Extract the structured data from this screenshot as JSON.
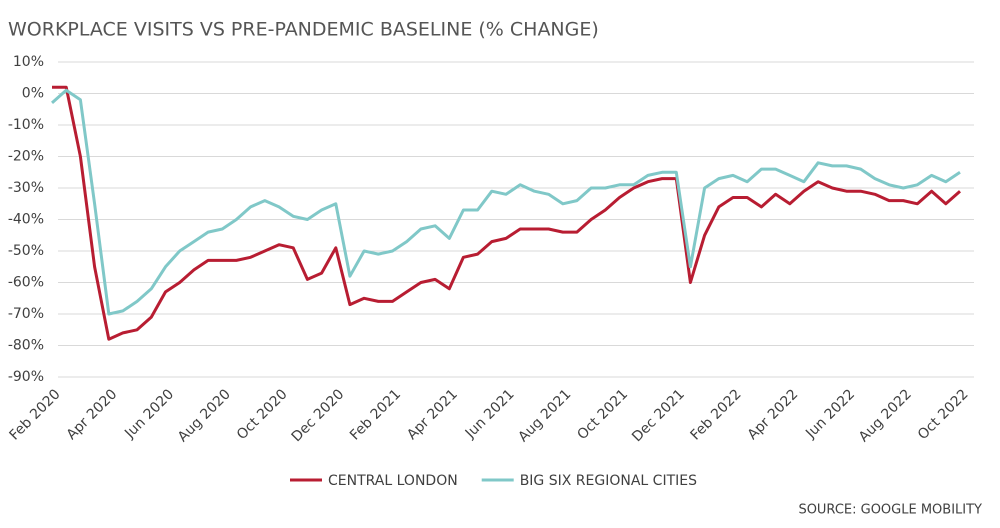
{
  "chart_data": {
    "type": "line",
    "title": "WORKPLACE VISITS VS PRE-PANDEMIC BASELINE (% CHANGE)",
    "source": "SOURCE: GOOGLE MOBILITY",
    "categories": [
      "Feb 2020",
      null,
      null,
      null,
      "Apr 2020",
      null,
      null,
      null,
      "Jun 2020",
      null,
      null,
      null,
      "Aug 2020",
      null,
      null,
      null,
      "Oct 2020",
      null,
      null,
      null,
      "Dec 2020",
      null,
      null,
      null,
      "Feb 2021",
      null,
      null,
      null,
      "Apr 2021",
      null,
      null,
      null,
      "Jun 2021",
      null,
      null,
      null,
      "Aug 2021",
      null,
      null,
      null,
      "Oct 2021",
      null,
      null,
      null,
      "Dec 2021",
      null,
      null,
      null,
      "Feb 2022",
      null,
      null,
      null,
      "Apr 2022",
      null,
      null,
      null,
      "Jun 2022",
      null,
      null,
      null,
      "Aug 2022",
      null,
      null,
      null,
      "Oct 2022"
    ],
    "series": [
      {
        "name": "CENTRAL LONDON",
        "color": "#b81d32",
        "values": [
          2,
          2,
          -20,
          -55,
          -78,
          -76,
          -75,
          -71,
          -63,
          -60,
          -56,
          -53,
          -53,
          -53,
          -52,
          -50,
          -48,
          -49,
          -59,
          -57,
          -49,
          -67,
          -65,
          -66,
          -66,
          -63,
          -60,
          -59,
          -62,
          -52,
          -51,
          -47,
          -46,
          -43,
          -43,
          -43,
          -44,
          -44,
          -40,
          -37,
          -33,
          -30,
          -28,
          -27,
          -27,
          -60,
          -45,
          -36,
          -33,
          -33,
          -36,
          -32,
          -35,
          -31,
          -28,
          -30,
          -31,
          -31,
          -32,
          -34,
          -34,
          -35,
          -31,
          -35,
          -31
        ]
      },
      {
        "name": "BIG SIX REGIONAL CITIES",
        "color": "#80c8c8",
        "values": [
          -3,
          1,
          -2,
          -35,
          -70,
          -69,
          -66,
          -62,
          -55,
          -50,
          -47,
          -44,
          -43,
          -40,
          -36,
          -34,
          -36,
          -39,
          -40,
          -37,
          -35,
          -58,
          -50,
          -51,
          -50,
          -47,
          -43,
          -42,
          -46,
          -37,
          -37,
          -31,
          -32,
          -29,
          -31,
          -32,
          -35,
          -34,
          -30,
          -30,
          -29,
          -29,
          -26,
          -25,
          -25,
          -55,
          -30,
          -27,
          -26,
          -28,
          -24,
          -24,
          -26,
          -28,
          -22,
          -23,
          -23,
          -24,
          -27,
          -29,
          -30,
          -29,
          -26,
          -28,
          -25
        ]
      }
    ],
    "ylim": [
      -90,
      10
    ],
    "yticks": [
      {
        "value": 10,
        "label": "10%"
      },
      {
        "value": 0,
        "label": "0%"
      },
      {
        "value": -10,
        "label": "-10%"
      },
      {
        "value": -20,
        "label": "-20%"
      },
      {
        "value": -30,
        "label": "-30%"
      },
      {
        "value": -40,
        "label": "-40%"
      },
      {
        "value": -50,
        "label": "-50%"
      },
      {
        "value": -60,
        "label": "-60%"
      },
      {
        "value": -70,
        "label": "-70%"
      },
      {
        "value": -80,
        "label": "-80%"
      },
      {
        "value": -90,
        "label": "-90%"
      }
    ],
    "grid": true,
    "legend": "bottom"
  }
}
